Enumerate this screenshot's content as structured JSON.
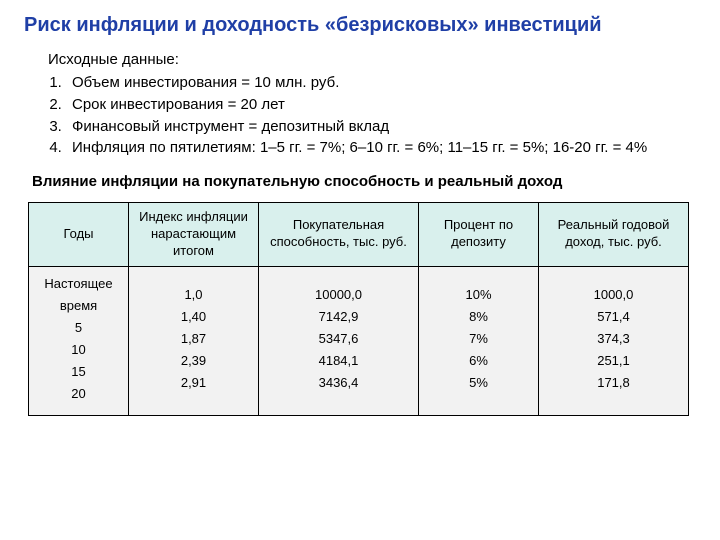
{
  "title_text": "Риск инфляции и доходность «безрисковых» инвестиций",
  "title_color": "#1f3fa6",
  "intro_text": "Исходные данные:",
  "list_items": [
    "Объем инвестирования = 10 млн. руб.",
    "Срок инвестирования = 20 лет",
    "Финансовый инструмент = депозитный вклад",
    "Инфляция по пятилетиям: 1–5 гг. = 7%; 6–10 гг. = 6%; 11–15 гг. = 5%; 16-20 гг. = 4%"
  ],
  "subtitle_text": "Влияние инфляции на покупательную способность и реальный доход",
  "table": {
    "header_bg": "#d9f0ed",
    "body_bg": "#f2f2f2",
    "border_color": "#000000",
    "columns": [
      "Годы",
      "Индекс инфляции нарастающим итогом",
      "Покупательная способность, тыс. руб.",
      "Процент по депозиту",
      "Реальный годовой доход, тыс. руб."
    ],
    "col_widths": [
      "100px",
      "130px",
      "160px",
      "120px",
      "150px"
    ],
    "years": [
      "Настоящее время",
      "5",
      "10",
      "15",
      "20"
    ],
    "inflation_index": [
      "1,0",
      "1,40",
      "1,87",
      "2,39",
      "2,91"
    ],
    "purchasing_power": [
      "10000,0",
      "7142,9",
      "5347,6",
      "4184,1",
      "3436,4"
    ],
    "deposit_rate": [
      "10%",
      "8%",
      "7%",
      "6%",
      "5%"
    ],
    "real_income": [
      "1000,0",
      "571,4",
      "374,3",
      "251,1",
      "171,8"
    ]
  },
  "fonts": {
    "title_size": 20,
    "body_size": 15,
    "table_size": 13
  }
}
